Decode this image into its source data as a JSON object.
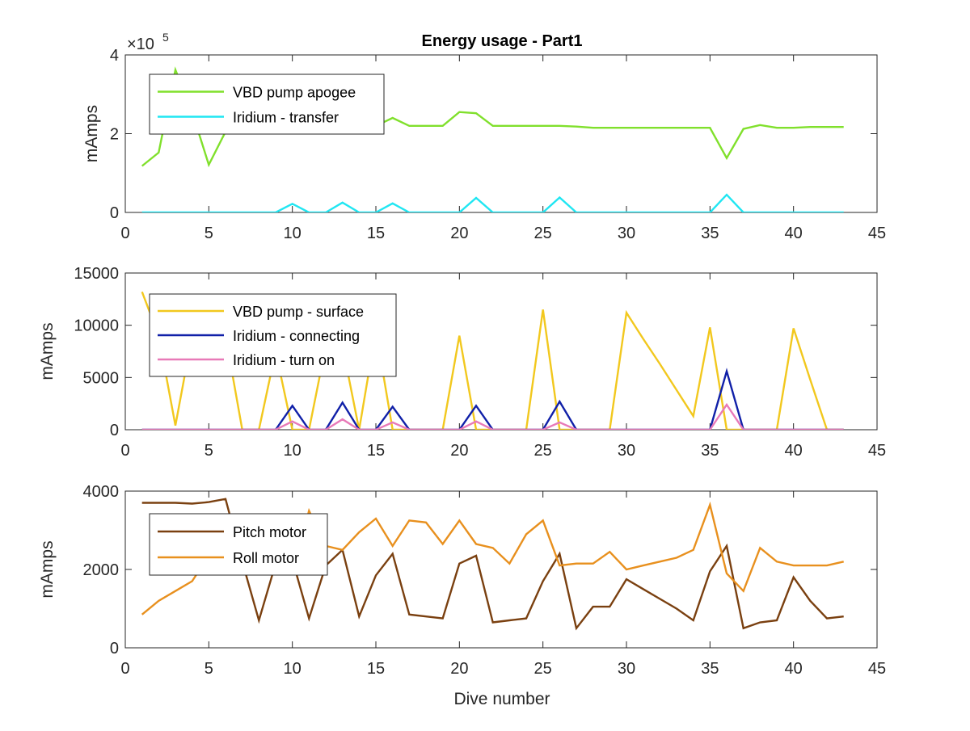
{
  "figure": {
    "title": "Energy usage - Part1",
    "xlabel": "Dive number"
  },
  "chart_data": [
    {
      "type": "line",
      "title": "Energy usage - Part1",
      "xlabel": "",
      "ylabel": "mAmps",
      "xlim": [
        0,
        45
      ],
      "ylim": [
        0,
        4
      ],
      "y_multiplier_label": "×10",
      "y_multiplier_exponent": "5",
      "x_ticks": [
        0,
        5,
        10,
        15,
        20,
        25,
        30,
        35,
        40,
        45
      ],
      "y_ticks": [
        0,
        2,
        4
      ],
      "grid": false,
      "legend_position": "top-left",
      "series": [
        {
          "name": "VBD pump apogee",
          "color": "#80e02c",
          "x": [
            1,
            2,
            3,
            4,
            5,
            6,
            7,
            8,
            9,
            10,
            11,
            12,
            13,
            14,
            15,
            16,
            17,
            18,
            19,
            20,
            21,
            22,
            23,
            24,
            25,
            26,
            27,
            28,
            29,
            30,
            31,
            32,
            33,
            34,
            35,
            36,
            37,
            38,
            39,
            40,
            41,
            42,
            43
          ],
          "y": [
            1.18,
            1.52,
            3.62,
            2.55,
            1.21,
            2.05,
            2.55,
            2.45,
            2.25,
            2.25,
            2.25,
            2.2,
            2.2,
            2.2,
            2.2,
            2.4,
            2.2,
            2.2,
            2.2,
            2.55,
            2.52,
            2.2,
            2.2,
            2.2,
            2.2,
            2.2,
            2.18,
            2.15,
            2.15,
            2.15,
            2.15,
            2.15,
            2.15,
            2.15,
            2.15,
            1.38,
            2.12,
            2.22,
            2.15,
            2.15,
            2.17,
            2.17,
            2.17
          ]
        },
        {
          "name": "Iridium - transfer",
          "color": "#20e6f2",
          "x": [
            1,
            2,
            3,
            4,
            5,
            6,
            7,
            8,
            9,
            10,
            11,
            12,
            13,
            14,
            15,
            16,
            17,
            18,
            19,
            20,
            21,
            22,
            23,
            24,
            25,
            26,
            27,
            28,
            29,
            30,
            31,
            32,
            33,
            34,
            35,
            36,
            37,
            38,
            39,
            40,
            41,
            42,
            43
          ],
          "y": [
            0,
            0,
            0,
            0,
            0,
            0,
            0,
            0,
            0,
            0.22,
            0,
            0,
            0.25,
            0,
            0,
            0.23,
            0,
            0,
            0,
            0,
            0.37,
            0,
            0,
            0,
            0,
            0.38,
            0,
            0,
            0,
            0,
            0,
            0,
            0,
            0,
            0,
            0.45,
            0,
            0,
            0,
            0,
            0,
            0,
            0
          ]
        }
      ]
    },
    {
      "type": "line",
      "title": "",
      "xlabel": "",
      "ylabel": "mAmps",
      "xlim": [
        0,
        45
      ],
      "ylim": [
        0,
        15000
      ],
      "x_ticks": [
        0,
        5,
        10,
        15,
        20,
        25,
        30,
        35,
        40,
        45
      ],
      "y_ticks": [
        0,
        5000,
        10000,
        15000
      ],
      "grid": false,
      "legend_position": "top-left",
      "series": [
        {
          "name": "VBD pump - surface",
          "color": "#f2c81e",
          "x": [
            1,
            2,
            3,
            4,
            5,
            6,
            7,
            8,
            9,
            10,
            11,
            12,
            13,
            14,
            15,
            16,
            17,
            18,
            19,
            20,
            21,
            22,
            23,
            24,
            25,
            26,
            27,
            28,
            29,
            30,
            31,
            32,
            33,
            34,
            35,
            36,
            37,
            38,
            39,
            40,
            41,
            42,
            43
          ],
          "y": [
            13200,
            9000,
            400,
            9000,
            9000,
            9000,
            0,
            0,
            7500,
            0,
            0,
            8000,
            8000,
            0,
            9500,
            0,
            0,
            0,
            0,
            9000,
            0,
            0,
            0,
            0,
            11500,
            0,
            0,
            0,
            0,
            11200,
            8700,
            6300,
            3800,
            1300,
            9800,
            0,
            0,
            0,
            0,
            9700,
            4800,
            0,
            0
          ]
        },
        {
          "name": "Iridium - connecting",
          "color": "#1020a8",
          "x": [
            1,
            2,
            3,
            4,
            5,
            6,
            7,
            8,
            9,
            10,
            11,
            12,
            13,
            14,
            15,
            16,
            17,
            18,
            19,
            20,
            21,
            22,
            23,
            24,
            25,
            26,
            27,
            28,
            29,
            30,
            31,
            32,
            33,
            34,
            35,
            36,
            37,
            38,
            39,
            40,
            41,
            42,
            43
          ],
          "y": [
            0,
            0,
            0,
            0,
            0,
            0,
            0,
            0,
            0,
            2300,
            0,
            0,
            2600,
            0,
            0,
            2200,
            0,
            0,
            0,
            0,
            2300,
            0,
            0,
            0,
            0,
            2700,
            0,
            0,
            0,
            0,
            0,
            0,
            0,
            0,
            0,
            5600,
            0,
            0,
            0,
            0,
            0,
            0,
            0
          ]
        },
        {
          "name": "Iridium - turn on",
          "color": "#e87ab8",
          "x": [
            1,
            2,
            3,
            4,
            5,
            6,
            7,
            8,
            9,
            10,
            11,
            12,
            13,
            14,
            15,
            16,
            17,
            18,
            19,
            20,
            21,
            22,
            23,
            24,
            25,
            26,
            27,
            28,
            29,
            30,
            31,
            32,
            33,
            34,
            35,
            36,
            37,
            38,
            39,
            40,
            41,
            42,
            43
          ],
          "y": [
            0,
            0,
            0,
            0,
            0,
            0,
            0,
            0,
            0,
            800,
            0,
            0,
            1000,
            0,
            0,
            700,
            0,
            0,
            0,
            0,
            800,
            0,
            0,
            0,
            0,
            700,
            0,
            0,
            0,
            0,
            0,
            0,
            0,
            0,
            0,
            2400,
            0,
            0,
            0,
            0,
            0,
            0,
            0
          ]
        }
      ]
    },
    {
      "type": "line",
      "title": "",
      "xlabel": "Dive number",
      "ylabel": "mAmps",
      "xlim": [
        0,
        45
      ],
      "ylim": [
        0,
        4000
      ],
      "x_ticks": [
        0,
        5,
        10,
        15,
        20,
        25,
        30,
        35,
        40,
        45
      ],
      "y_ticks": [
        0,
        2000,
        4000
      ],
      "grid": false,
      "legend_position": "top-left",
      "series": [
        {
          "name": "Pitch motor",
          "color": "#7a4010",
          "x": [
            1,
            2,
            3,
            4,
            5,
            6,
            7,
            8,
            9,
            10,
            11,
            12,
            13,
            14,
            15,
            16,
            17,
            18,
            19,
            20,
            21,
            22,
            23,
            24,
            25,
            26,
            27,
            28,
            29,
            30,
            31,
            32,
            33,
            34,
            35,
            36,
            37,
            38,
            39,
            40,
            41,
            42,
            43
          ],
          "y": [
            3700,
            3700,
            3700,
            3680,
            3720,
            3800,
            2200,
            700,
            2150,
            2250,
            750,
            2100,
            2500,
            800,
            1850,
            2400,
            850,
            800,
            750,
            2150,
            2350,
            650,
            700,
            750,
            1700,
            2400,
            500,
            1050,
            1050,
            1750,
            1500,
            1250,
            1000,
            700,
            1950,
            2600,
            500,
            650,
            700,
            1800,
            1200,
            750,
            800
          ]
        },
        {
          "name": "Roll motor",
          "color": "#e8901e",
          "x": [
            1,
            2,
            3,
            4,
            5,
            6,
            7,
            8,
            9,
            10,
            11,
            12,
            13,
            14,
            15,
            16,
            17,
            18,
            19,
            20,
            21,
            22,
            23,
            24,
            25,
            26,
            27,
            28,
            29,
            30,
            31,
            32,
            33,
            34,
            35,
            36,
            37,
            38,
            39,
            40,
            41,
            42,
            43
          ],
          "y": [
            850,
            1200,
            1450,
            1700,
            2350,
            2450,
            2650,
            2700,
            2450,
            1900,
            3500,
            2600,
            2500,
            2950,
            3300,
            2600,
            3250,
            3200,
            2650,
            3250,
            2650,
            2550,
            2150,
            2900,
            3250,
            2100,
            2150,
            2150,
            2450,
            2000,
            2100,
            2200,
            2300,
            2500,
            3650,
            1900,
            1450,
            2550,
            2200,
            2100,
            2100,
            2100,
            2200
          ]
        }
      ]
    }
  ]
}
